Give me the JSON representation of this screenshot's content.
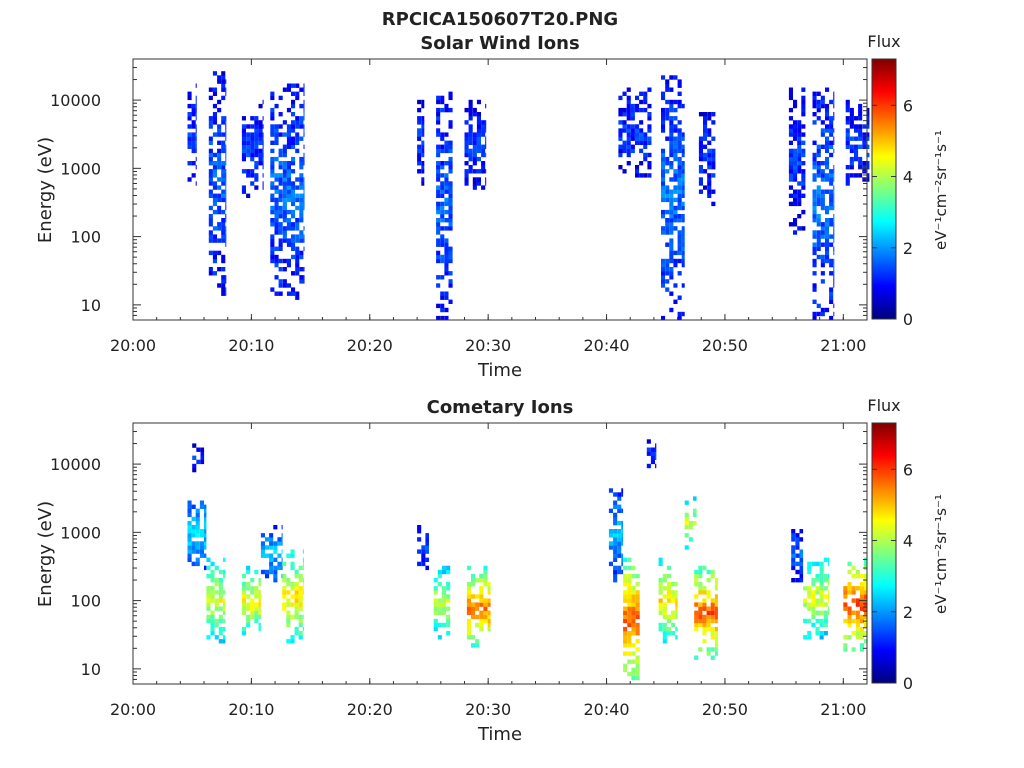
{
  "figure_title": "RPCICA150607T20.PNG",
  "chart_data": [
    {
      "type": "heatmap",
      "title": "Solar Wind Ions",
      "xlabel": "Time",
      "ylabel": "Energy (eV)",
      "x_ticks": [
        "20:00",
        "20:10",
        "20:20",
        "20:30",
        "20:40",
        "20:50",
        "21:00"
      ],
      "y_ticks": [
        "10",
        "100",
        "1000",
        "10000"
      ],
      "y_scale": "log",
      "ylim": [
        6,
        40000
      ],
      "xlim": [
        "20:00",
        "21:02"
      ],
      "colorbar": {
        "label": "Flux",
        "unit": "eV⁻¹cm⁻²sr⁻¹s⁻¹",
        "ticks": [
          "0",
          "2",
          "4",
          "6"
        ],
        "range": [
          0,
          7.3
        ],
        "colormap": "jet"
      },
      "bursts": [
        {
          "start_min": 4.6,
          "end_min": 5.3,
          "e_min": 600,
          "e_max": 17000,
          "level": 1.3
        },
        {
          "start_min": 6.4,
          "end_min": 7.8,
          "e_min": 12,
          "e_max": 25000,
          "level": 1.6
        },
        {
          "start_min": 9.2,
          "end_min": 11.0,
          "e_min": 400,
          "e_max": 9000,
          "level": 1.3
        },
        {
          "start_min": 11.6,
          "end_min": 14.4,
          "e_min": 12,
          "e_max": 16000,
          "level": 1.7
        },
        {
          "start_min": 24.0,
          "end_min": 24.6,
          "e_min": 600,
          "e_max": 9000,
          "level": 1.3
        },
        {
          "start_min": 25.6,
          "end_min": 27.0,
          "e_min": 6,
          "e_max": 15000,
          "level": 1.6
        },
        {
          "start_min": 28.0,
          "end_min": 29.8,
          "e_min": 500,
          "e_max": 9000,
          "level": 1.3
        },
        {
          "start_min": 41.0,
          "end_min": 43.8,
          "e_min": 700,
          "e_max": 15000,
          "level": 1.3
        },
        {
          "start_min": 44.6,
          "end_min": 46.6,
          "e_min": 6,
          "e_max": 22000,
          "level": 1.7
        },
        {
          "start_min": 47.8,
          "end_min": 49.2,
          "e_min": 300,
          "e_max": 8000,
          "level": 1.3
        },
        {
          "start_min": 55.4,
          "end_min": 56.8,
          "e_min": 120,
          "e_max": 15000,
          "level": 1.3
        },
        {
          "start_min": 57.4,
          "end_min": 59.2,
          "e_min": 6,
          "e_max": 15000,
          "level": 1.7
        },
        {
          "start_min": 60.2,
          "end_min": 62.2,
          "e_min": 500,
          "e_max": 9000,
          "level": 1.3
        }
      ]
    },
    {
      "type": "heatmap",
      "title": "Cometary Ions",
      "xlabel": "Time",
      "ylabel": "Energy (eV)",
      "x_ticks": [
        "20:00",
        "20:10",
        "20:20",
        "20:30",
        "20:40",
        "20:50",
        "21:00"
      ],
      "y_ticks": [
        "10",
        "100",
        "1000",
        "10000"
      ],
      "y_scale": "log",
      "ylim": [
        6,
        40000
      ],
      "xlim": [
        "20:00",
        "21:02"
      ],
      "colorbar": {
        "label": "Flux",
        "unit": "eV⁻¹cm⁻²sr⁻¹s⁻¹",
        "ticks": [
          "0",
          "2",
          "4",
          "6"
        ],
        "range": [
          0,
          7.3
        ],
        "colormap": "jet"
      },
      "bursts": [
        {
          "start_min": 4.6,
          "end_min": 6.2,
          "e_min": 300,
          "e_max": 3000,
          "level": 2.5
        },
        {
          "start_min": 5.0,
          "end_min": 6.0,
          "e_min": 8000,
          "e_max": 20000,
          "level": 1.2
        },
        {
          "start_min": 6.2,
          "end_min": 7.8,
          "e_min": 25,
          "e_max": 400,
          "level": 4.4
        },
        {
          "start_min": 9.2,
          "end_min": 10.8,
          "e_min": 30,
          "e_max": 300,
          "level": 4.6
        },
        {
          "start_min": 10.8,
          "end_min": 12.6,
          "e_min": 200,
          "e_max": 1200,
          "level": 2.4
        },
        {
          "start_min": 12.6,
          "end_min": 14.4,
          "e_min": 25,
          "e_max": 500,
          "level": 4.8
        },
        {
          "start_min": 24.0,
          "end_min": 25.0,
          "e_min": 300,
          "e_max": 1200,
          "level": 1.4
        },
        {
          "start_min": 25.4,
          "end_min": 26.8,
          "e_min": 30,
          "e_max": 300,
          "level": 4.2
        },
        {
          "start_min": 28.2,
          "end_min": 30.2,
          "e_min": 20,
          "e_max": 300,
          "level": 5.6
        },
        {
          "start_min": 40.2,
          "end_min": 41.4,
          "e_min": 200,
          "e_max": 4000,
          "level": 2.2
        },
        {
          "start_min": 41.4,
          "end_min": 42.8,
          "e_min": 6,
          "e_max": 400,
          "level": 5.8
        },
        {
          "start_min": 43.4,
          "end_min": 44.2,
          "e_min": 8000,
          "e_max": 22000,
          "level": 1.2
        },
        {
          "start_min": 44.4,
          "end_min": 46.0,
          "e_min": 25,
          "e_max": 400,
          "level": 4.8
        },
        {
          "start_min": 46.6,
          "end_min": 47.6,
          "e_min": 600,
          "e_max": 3000,
          "level": 4.3
        },
        {
          "start_min": 47.4,
          "end_min": 49.4,
          "e_min": 15,
          "e_max": 300,
          "level": 5.8
        },
        {
          "start_min": 55.6,
          "end_min": 56.6,
          "e_min": 200,
          "e_max": 1200,
          "level": 1.6
        },
        {
          "start_min": 56.6,
          "end_min": 58.8,
          "e_min": 30,
          "e_max": 400,
          "level": 4.4
        },
        {
          "start_min": 60.0,
          "end_min": 62.0,
          "e_min": 20,
          "e_max": 400,
          "level": 6.0
        }
      ]
    }
  ]
}
